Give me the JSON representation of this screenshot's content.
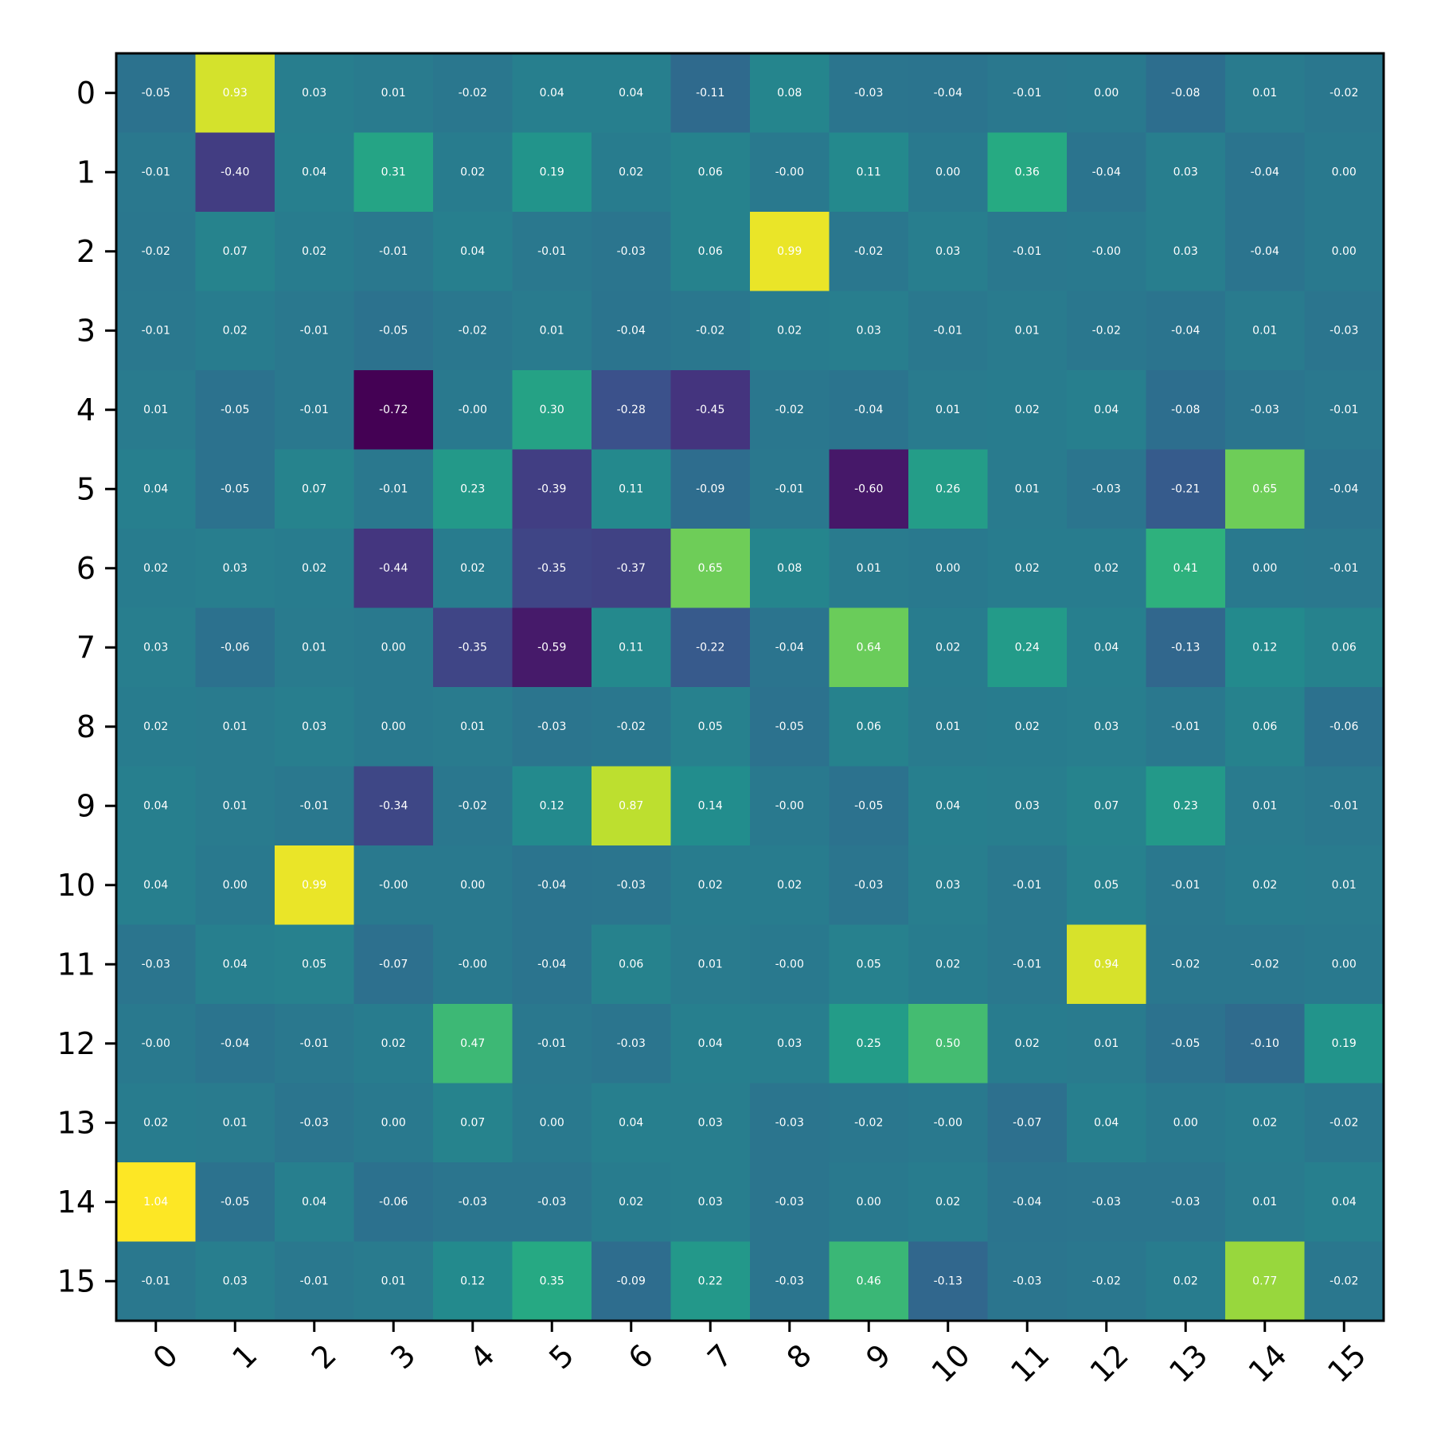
{
  "chart_data": {
    "type": "heatmap",
    "title": "",
    "xlabel": "",
    "ylabel": "",
    "x_categories": [
      "0",
      "1",
      "2",
      "3",
      "4",
      "5",
      "6",
      "7",
      "8",
      "9",
      "10",
      "11",
      "12",
      "13",
      "14",
      "15"
    ],
    "y_categories": [
      "0",
      "1",
      "2",
      "3",
      "4",
      "5",
      "6",
      "7",
      "8",
      "9",
      "10",
      "11",
      "12",
      "13",
      "14",
      "15"
    ],
    "colormap": "viridis",
    "value_range": [
      -0.72,
      1.04
    ],
    "colorbar": false,
    "values": [
      [
        -0.05,
        0.93,
        0.03,
        0.01,
        -0.02,
        0.04,
        0.04,
        -0.11,
        0.08,
        -0.03,
        -0.04,
        -0.01,
        0.0,
        -0.08,
        0.01,
        -0.02
      ],
      [
        -0.01,
        -0.4,
        0.04,
        0.31,
        0.02,
        0.19,
        0.02,
        0.06,
        -0.0,
        0.11,
        0.0,
        0.36,
        -0.04,
        0.03,
        -0.04,
        0.0
      ],
      [
        -0.02,
        0.07,
        0.02,
        -0.01,
        0.04,
        -0.01,
        -0.03,
        0.06,
        0.99,
        -0.02,
        0.03,
        -0.01,
        -0.0,
        0.03,
        -0.04,
        0.0
      ],
      [
        -0.01,
        0.02,
        -0.01,
        -0.05,
        -0.02,
        0.01,
        -0.04,
        -0.02,
        0.02,
        0.03,
        -0.01,
        0.01,
        -0.02,
        -0.04,
        0.01,
        -0.03
      ],
      [
        0.01,
        -0.05,
        -0.01,
        -0.72,
        -0.0,
        0.3,
        -0.28,
        -0.45,
        -0.02,
        -0.04,
        0.01,
        0.02,
        0.04,
        -0.08,
        -0.03,
        -0.01
      ],
      [
        0.04,
        -0.05,
        0.07,
        -0.01,
        0.23,
        -0.39,
        0.11,
        -0.09,
        -0.01,
        -0.6,
        0.26,
        0.01,
        -0.03,
        -0.21,
        0.65,
        -0.04
      ],
      [
        0.02,
        0.03,
        0.02,
        -0.44,
        0.02,
        -0.35,
        -0.37,
        0.65,
        0.08,
        0.01,
        0.0,
        0.02,
        0.02,
        0.41,
        0.0,
        -0.01
      ],
      [
        0.03,
        -0.06,
        0.01,
        0.0,
        -0.35,
        -0.59,
        0.11,
        -0.22,
        -0.04,
        0.64,
        0.02,
        0.24,
        0.04,
        -0.13,
        0.12,
        0.06
      ],
      [
        0.02,
        0.01,
        0.03,
        0.0,
        0.01,
        -0.03,
        -0.02,
        0.05,
        -0.05,
        0.06,
        0.01,
        0.02,
        0.03,
        -0.01,
        0.06,
        -0.06
      ],
      [
        0.04,
        0.01,
        -0.01,
        -0.34,
        -0.02,
        0.12,
        0.87,
        0.14,
        -0.0,
        -0.05,
        0.04,
        0.03,
        0.07,
        0.23,
        0.01,
        -0.01
      ],
      [
        0.04,
        0.0,
        0.99,
        -0.0,
        0.0,
        -0.04,
        -0.03,
        0.02,
        0.02,
        -0.03,
        0.03,
        -0.01,
        0.05,
        -0.01,
        0.02,
        0.01
      ],
      [
        -0.03,
        0.04,
        0.05,
        -0.07,
        -0.0,
        -0.04,
        0.06,
        0.01,
        -0.0,
        0.05,
        0.02,
        -0.01,
        0.94,
        -0.02,
        -0.02,
        0.0
      ],
      [
        -0.0,
        -0.04,
        -0.01,
        0.02,
        0.47,
        -0.01,
        -0.03,
        0.04,
        0.03,
        0.25,
        0.5,
        0.02,
        0.01,
        -0.05,
        -0.1,
        0.19
      ],
      [
        0.02,
        0.01,
        -0.03,
        0.0,
        0.07,
        0.0,
        0.04,
        0.03,
        -0.03,
        -0.02,
        -0.0,
        -0.07,
        0.04,
        0.0,
        0.02,
        -0.02
      ],
      [
        1.04,
        -0.05,
        0.04,
        -0.06,
        -0.03,
        -0.03,
        0.02,
        0.03,
        -0.03,
        0.0,
        0.02,
        -0.04,
        -0.03,
        -0.03,
        0.01,
        0.04
      ],
      [
        -0.01,
        0.03,
        -0.01,
        0.01,
        0.12,
        0.35,
        -0.09,
        0.22,
        -0.03,
        0.46,
        -0.13,
        -0.03,
        -0.02,
        0.02,
        0.77,
        -0.02
      ]
    ],
    "cell_labels": [
      [
        "-0.05",
        "0.93",
        "0.03",
        "0.01",
        "-0.02",
        "0.04",
        "0.04",
        "-0.11",
        "0.08",
        "-0.03",
        "-0.04",
        "-0.01",
        "0.00",
        "-0.08",
        "0.01",
        "-0.02"
      ],
      [
        "-0.01",
        "-0.40",
        "0.04",
        "0.31",
        "0.02",
        "0.19",
        "0.02",
        "0.06",
        "-0.00",
        "0.11",
        "0.00",
        "0.36",
        "-0.04",
        "0.03",
        "-0.04",
        "0.00"
      ],
      [
        "-0.02",
        "0.07",
        "0.02",
        "-0.01",
        "0.04",
        "-0.01",
        "-0.03",
        "0.06",
        "0.99",
        "-0.02",
        "0.03",
        "-0.01",
        "-0.00",
        "0.03",
        "-0.04",
        "0.00"
      ],
      [
        "-0.01",
        "0.02",
        "-0.01",
        "-0.05",
        "-0.02",
        "0.01",
        "-0.04",
        "-0.02",
        "0.02",
        "0.03",
        "-0.01",
        "0.01",
        "-0.02",
        "-0.04",
        "0.01",
        "-0.03"
      ],
      [
        "0.01",
        "-0.05",
        "-0.01",
        "-0.72",
        "-0.00",
        "0.30",
        "-0.28",
        "-0.45",
        "-0.02",
        "-0.04",
        "0.01",
        "0.02",
        "0.04",
        "-0.08",
        "-0.03",
        "-0.01"
      ],
      [
        "0.04",
        "-0.05",
        "0.07",
        "-0.01",
        "0.23",
        "-0.39",
        "0.11",
        "-0.09",
        "-0.01",
        "-0.60",
        "0.26",
        "0.01",
        "-0.03",
        "-0.21",
        "0.65",
        "-0.04"
      ],
      [
        "0.02",
        "0.03",
        "0.02",
        "-0.44",
        "0.02",
        "-0.35",
        "-0.37",
        "0.65",
        "0.08",
        "0.01",
        "0.00",
        "0.02",
        "0.02",
        "0.41",
        "0.00",
        "-0.01"
      ],
      [
        "0.03",
        "-0.06",
        "0.01",
        "0.00",
        "-0.35",
        "-0.59",
        "0.11",
        "-0.22",
        "-0.04",
        "0.64",
        "0.02",
        "0.24",
        "0.04",
        "-0.13",
        "0.12",
        "0.06"
      ],
      [
        "0.02",
        "0.01",
        "0.03",
        "0.00",
        "0.01",
        "-0.03",
        "-0.02",
        "0.05",
        "-0.05",
        "0.06",
        "0.01",
        "0.02",
        "0.03",
        "-0.01",
        "0.06",
        "-0.06"
      ],
      [
        "0.04",
        "0.01",
        "-0.01",
        "-0.34",
        "-0.02",
        "0.12",
        "0.87",
        "0.14",
        "-0.00",
        "-0.05",
        "0.04",
        "0.03",
        "0.07",
        "0.23",
        "0.01",
        "-0.01"
      ],
      [
        "0.04",
        "0.00",
        "0.99",
        "-0.00",
        "0.00",
        "-0.04",
        "-0.03",
        "0.02",
        "0.02",
        "-0.03",
        "0.03",
        "-0.01",
        "0.05",
        "-0.01",
        "0.02",
        "0.01"
      ],
      [
        "-0.03",
        "0.04",
        "0.05",
        "-0.07",
        "-0.00",
        "-0.04",
        "0.06",
        "0.01",
        "-0.00",
        "0.05",
        "0.02",
        "-0.01",
        "0.94",
        "-0.02",
        "-0.02",
        "0.00"
      ],
      [
        "-0.00",
        "-0.04",
        "-0.01",
        "0.02",
        "0.47",
        "-0.01",
        "-0.03",
        "0.04",
        "0.03",
        "0.25",
        "0.50",
        "0.02",
        "0.01",
        "-0.05",
        "-0.10",
        "0.19"
      ],
      [
        "0.02",
        "0.01",
        "-0.03",
        "0.00",
        "0.07",
        "0.00",
        "0.04",
        "0.03",
        "-0.03",
        "-0.02",
        "-0.00",
        "-0.07",
        "0.04",
        "0.00",
        "0.02",
        "-0.02"
      ],
      [
        "1.04",
        "-0.05",
        "0.04",
        "-0.06",
        "-0.03",
        "-0.03",
        "0.02",
        "0.03",
        "-0.03",
        "0.00",
        "0.02",
        "-0.04",
        "-0.03",
        "-0.03",
        "0.01",
        "0.04"
      ],
      [
        "-0.01",
        "0.03",
        "-0.01",
        "0.01",
        "0.12",
        "0.35",
        "-0.09",
        "0.22",
        "-0.03",
        "0.46",
        "-0.13",
        "-0.03",
        "-0.02",
        "0.02",
        "0.77",
        "-0.02"
      ]
    ],
    "grid": false,
    "legend": "none"
  }
}
